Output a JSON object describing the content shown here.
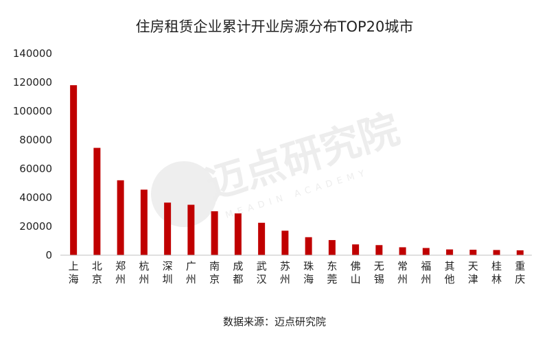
{
  "chart_data": {
    "type": "bar",
    "title": "住房租赁企业累计开业房源分布TOP20城市",
    "categories": [
      "上海",
      "北京",
      "郑州",
      "杭州",
      "深圳",
      "广州",
      "南京",
      "成都",
      "武汉",
      "苏州",
      "珠海",
      "东莞",
      "佛山",
      "无锡",
      "常州",
      "福州",
      "其他",
      "天津",
      "桂林",
      "重庆"
    ],
    "values": [
      118000,
      74500,
      52000,
      45500,
      36500,
      35000,
      30500,
      29000,
      22500,
      17000,
      12500,
      10500,
      7500,
      7000,
      5500,
      5000,
      4000,
      3800,
      3600,
      3400
    ],
    "yticks": [
      0,
      20000,
      40000,
      60000,
      80000,
      100000,
      120000,
      140000
    ],
    "ylim": [
      0,
      140000
    ],
    "xlabel": "",
    "ylabel": "",
    "grid": false,
    "legend": "none",
    "bar_color": "#c00000"
  },
  "source": "数据来源：迈点研究院",
  "watermark": {
    "brand": "迈点研究院",
    "subtitle": "MEADIN ACADEMY"
  }
}
